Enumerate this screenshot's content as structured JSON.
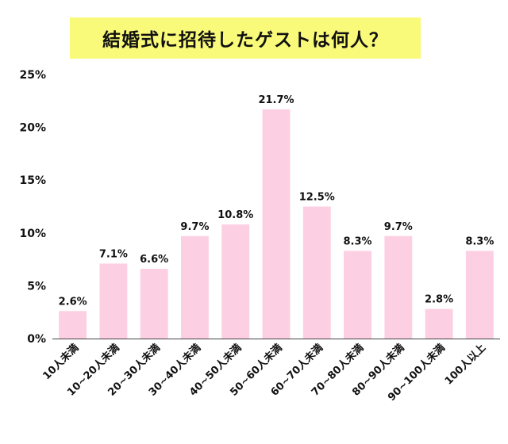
{
  "title": "結婚式に招待したゲストは何人？",
  "colors": {
    "bar": "#fccfe2",
    "title_bg": "#fafa7a",
    "axis": "#444444",
    "text": "#111111"
  },
  "chart_data": {
    "type": "bar",
    "title": "結婚式に招待したゲストは何人？",
    "xlabel": "",
    "ylabel": "",
    "categories": [
      "10人未満",
      "10~20人未満",
      "20~30人未満",
      "30~40人未満",
      "40~50人未満",
      "50~60人未満",
      "60~70人未満",
      "70~80人未満",
      "80~90人未満",
      "90~100人未満",
      "100人以上"
    ],
    "values": [
      2.6,
      7.1,
      6.6,
      9.7,
      10.8,
      21.7,
      12.5,
      8.3,
      9.7,
      2.8,
      8.3
    ],
    "data_labels": [
      "2.6%",
      "7.1%",
      "6.6%",
      "9.7%",
      "10.8%",
      "21.7%",
      "12.5%",
      "8.3%",
      "9.7%",
      "2.8%",
      "8.3%"
    ],
    "ylim": [
      0,
      25
    ],
    "yticks": [
      0,
      5,
      10,
      15,
      20,
      25
    ],
    "ytick_labels": [
      "0%",
      "5%",
      "10%",
      "15%",
      "20%",
      "25%"
    ],
    "grid": false,
    "legend": "none"
  }
}
